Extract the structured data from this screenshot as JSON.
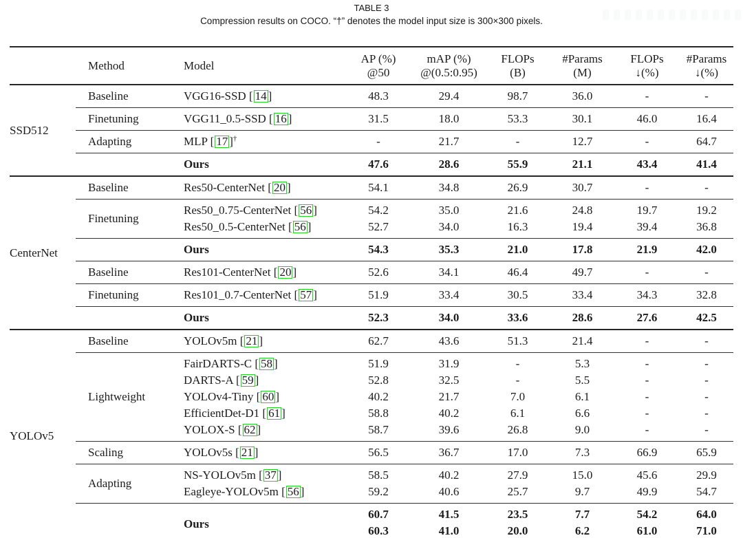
{
  "page": {
    "title": "TABLE 3",
    "caption": "Compression results on COCO. “†” denotes the model input size is 300×300 pixels."
  },
  "colors": {
    "citation_box": "#22d422",
    "rule": "#262626",
    "text": "#1c1c1c"
  },
  "citation": {
    "open": "[",
    "close": "]"
  },
  "table": {
    "columns": [
      {
        "key": "method",
        "label": "Method",
        "sub": ""
      },
      {
        "key": "model",
        "label": "Model",
        "sub": ""
      },
      {
        "key": "ap50",
        "label": "AP (%)",
        "sub": "@50"
      },
      {
        "key": "map",
        "label": "mAP (%)",
        "sub": "@(0.5:0.95)"
      },
      {
        "key": "flops-b",
        "label": "FLOPs",
        "sub": "(B)"
      },
      {
        "key": "params-m",
        "label": "#Params",
        "sub": "(M)"
      },
      {
        "key": "flops-drop",
        "label": "FLOPs",
        "sub": "↓(%)"
      },
      {
        "key": "params-drop",
        "label": "#Params",
        "sub": "↓(%)"
      }
    ],
    "groups": [
      {
        "name": "SSD512",
        "blocks": [
          {
            "method": "Baseline",
            "bold": false,
            "rows": [
              {
                "model": "VGG16-SSD",
                "cite": "14",
                "values": [
                  "48.3",
                  "29.4",
                  "98.7",
                  "36.0",
                  "-",
                  "-"
                ]
              }
            ]
          },
          {
            "method": "Finetuning",
            "bold": false,
            "rows": [
              {
                "model": "VGG11_0.5-SSD",
                "cite": "16",
                "values": [
                  "31.5",
                  "18.0",
                  "53.3",
                  "30.1",
                  "46.0",
                  "16.4"
                ]
              }
            ]
          },
          {
            "method": "Adapting",
            "bold": false,
            "rows": [
              {
                "model": "MLP",
                "cite": "17",
                "dagger": "†",
                "values": [
                  "-",
                  "21.7",
                  "-",
                  "12.7",
                  "-",
                  "64.7"
                ]
              }
            ]
          },
          {
            "method": "",
            "bold": true,
            "rows": [
              {
                "model": "Ours",
                "values": [
                  "47.6",
                  "28.6",
                  "55.9",
                  "21.1",
                  "43.4",
                  "41.4"
                ]
              }
            ]
          }
        ]
      },
      {
        "name": "CenterNet",
        "blocks": [
          {
            "method": "Baseline",
            "bold": false,
            "rows": [
              {
                "model": "Res50-CenterNet",
                "cite": "20",
                "values": [
                  "54.1",
                  "34.8",
                  "26.9",
                  "30.7",
                  "-",
                  "-"
                ]
              }
            ]
          },
          {
            "method": "Finetuning",
            "bold": false,
            "rows": [
              {
                "model": "Res50_0.75-CenterNet",
                "cite": "56",
                "values": [
                  "54.2",
                  "35.0",
                  "21.6",
                  "24.8",
                  "19.7",
                  "19.2"
                ]
              },
              {
                "model": "Res50_0.5-CenterNet",
                "cite": "56",
                "values": [
                  "52.7",
                  "34.0",
                  "16.3",
                  "19.4",
                  "39.4",
                  "36.8"
                ]
              }
            ]
          },
          {
            "method": "",
            "bold": true,
            "rows": [
              {
                "model": "Ours",
                "values": [
                  "54.3",
                  "35.3",
                  "21.0",
                  "17.8",
                  "21.9",
                  "42.0"
                ]
              }
            ]
          },
          {
            "method": "Baseline",
            "bold": false,
            "rows": [
              {
                "model": "Res101-CenterNet",
                "cite": "20",
                "values": [
                  "52.6",
                  "34.1",
                  "46.4",
                  "49.7",
                  "-",
                  "-"
                ]
              }
            ]
          },
          {
            "method": "Finetuning",
            "bold": false,
            "rows": [
              {
                "model": "Res101_0.7-CenterNet",
                "cite": "57",
                "values": [
                  "51.9",
                  "33.4",
                  "30.5",
                  "33.4",
                  "34.3",
                  "32.8"
                ]
              }
            ]
          },
          {
            "method": "",
            "bold": true,
            "rows": [
              {
                "model": "Ours",
                "values": [
                  "52.3",
                  "34.0",
                  "33.6",
                  "28.6",
                  "27.6",
                  "42.5"
                ]
              }
            ]
          }
        ]
      },
      {
        "name": "YOLOv5",
        "blocks": [
          {
            "method": "Baseline",
            "bold": false,
            "rows": [
              {
                "model": "YOLOv5m",
                "cite": "21",
                "values": [
                  "62.7",
                  "43.6",
                  "51.3",
                  "21.4",
                  "-",
                  "-"
                ]
              }
            ]
          },
          {
            "method": "Lightweight",
            "bold": false,
            "rows": [
              {
                "model": "FairDARTS-C",
                "cite": "58",
                "values": [
                  "51.9",
                  "31.9",
                  "-",
                  "5.3",
                  "-",
                  "-"
                ]
              },
              {
                "model": "DARTS-A",
                "cite": "59",
                "values": [
                  "52.8",
                  "32.5",
                  "-",
                  "5.5",
                  "-",
                  "-"
                ]
              },
              {
                "model": "YOLOv4-Tiny",
                "cite": "60",
                "values": [
                  "40.2",
                  "21.7",
                  "7.0",
                  "6.1",
                  "-",
                  "-"
                ]
              },
              {
                "model": "EfficientDet-D1",
                "cite": "61",
                "values": [
                  "58.8",
                  "40.2",
                  "6.1",
                  "6.6",
                  "-",
                  "-"
                ]
              },
              {
                "model": "YOLOX-S",
                "cite": "62",
                "values": [
                  "58.7",
                  "39.6",
                  "26.8",
                  "9.0",
                  "-",
                  "-"
                ]
              }
            ]
          },
          {
            "method": "Scaling",
            "bold": false,
            "rows": [
              {
                "model": "YOLOv5s",
                "cite": "21",
                "values": [
                  "56.5",
                  "36.7",
                  "17.0",
                  "7.3",
                  "66.9",
                  "65.9"
                ]
              }
            ]
          },
          {
            "method": "Adapting",
            "bold": false,
            "rows": [
              {
                "model": "NS-YOLOv5m",
                "cite": "37",
                "values": [
                  "58.5",
                  "40.2",
                  "27.9",
                  "15.0",
                  "45.6",
                  "29.9"
                ]
              },
              {
                "model": "Eagleye-YOLOv5m",
                "cite": "56",
                "values": [
                  "59.2",
                  "40.6",
                  "25.7",
                  "9.7",
                  "49.9",
                  "54.7"
                ]
              }
            ]
          },
          {
            "method": "",
            "bold": true,
            "rows": [
              {
                "model": "Ours",
                "rowspan": 2,
                "values": [
                  "60.7",
                  "41.5",
                  "23.5",
                  "7.7",
                  "54.2",
                  "64.0"
                ]
              },
              {
                "model": null,
                "values": [
                  "60.3",
                  "41.0",
                  "20.0",
                  "6.2",
                  "61.0",
                  "71.0"
                ]
              }
            ]
          }
        ]
      }
    ]
  }
}
